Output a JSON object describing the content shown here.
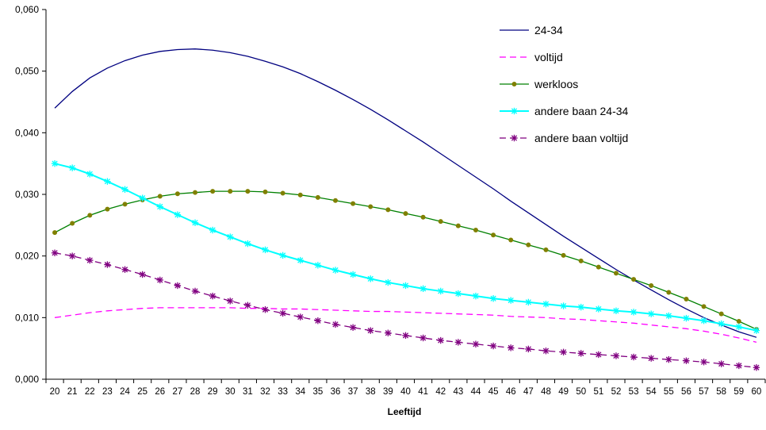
{
  "chart_data": {
    "type": "line",
    "title": "",
    "xlabel": "Leeftijd",
    "ylabel": "",
    "x": [
      20,
      21,
      22,
      23,
      24,
      25,
      26,
      27,
      28,
      29,
      30,
      31,
      32,
      33,
      34,
      35,
      36,
      37,
      38,
      39,
      40,
      41,
      42,
      43,
      44,
      45,
      46,
      47,
      48,
      49,
      50,
      51,
      52,
      53,
      54,
      55,
      56,
      57,
      58,
      59,
      60
    ],
    "ylim": [
      0,
      0.06
    ],
    "yticks": [
      "0,000",
      "0,010",
      "0,020",
      "0,030",
      "0,040",
      "0,050",
      "0,060"
    ],
    "ytick_values": [
      0,
      0.01,
      0.02,
      0.03,
      0.04,
      0.05,
      0.06
    ],
    "grid": false,
    "legend_position": "top-right",
    "series": [
      {
        "name": "24-34",
        "color": "#000080",
        "dash": "solid",
        "marker": "none",
        "values": [
          0.044,
          0.0467,
          0.0489,
          0.0505,
          0.0517,
          0.0526,
          0.0532,
          0.0535,
          0.0536,
          0.0534,
          0.053,
          0.0524,
          0.0516,
          0.0507,
          0.0496,
          0.0483,
          0.0469,
          0.0454,
          0.0438,
          0.0421,
          0.0403,
          0.0385,
          0.0366,
          0.0347,
          0.0328,
          0.0309,
          0.0289,
          0.027,
          0.0251,
          0.0232,
          0.0214,
          0.0196,
          0.0178,
          0.0161,
          0.0145,
          0.0129,
          0.0114,
          0.01,
          0.0088,
          0.0077,
          0.0068
        ]
      },
      {
        "name": "voltijd",
        "color": "#ff00ff",
        "dash": "dashed",
        "marker": "none",
        "values": [
          0.01,
          0.0104,
          0.0108,
          0.0111,
          0.0113,
          0.0115,
          0.0116,
          0.0116,
          0.0116,
          0.0116,
          0.0116,
          0.0115,
          0.0115,
          0.0114,
          0.0114,
          0.0113,
          0.0112,
          0.0111,
          0.011,
          0.011,
          0.0109,
          0.0108,
          0.0107,
          0.0106,
          0.0105,
          0.0104,
          0.0102,
          0.0101,
          0.01,
          0.0098,
          0.0097,
          0.0095,
          0.0093,
          0.0091,
          0.0088,
          0.0085,
          0.0082,
          0.0078,
          0.0073,
          0.0067,
          0.006
        ]
      },
      {
        "name": "werkloos",
        "color": "#008000",
        "markerColor": "#808000",
        "dash": "solid",
        "marker": "dot",
        "values": [
          0.0238,
          0.0253,
          0.0266,
          0.0276,
          0.0284,
          0.0291,
          0.0297,
          0.0301,
          0.0303,
          0.0305,
          0.0305,
          0.0305,
          0.0304,
          0.0302,
          0.0299,
          0.0295,
          0.029,
          0.0285,
          0.028,
          0.0275,
          0.0269,
          0.0263,
          0.0256,
          0.0249,
          0.0242,
          0.0234,
          0.0226,
          0.0218,
          0.021,
          0.0201,
          0.0192,
          0.0182,
          0.0172,
          0.0162,
          0.0152,
          0.0141,
          0.013,
          0.0118,
          0.0106,
          0.0094,
          0.0081
        ]
      },
      {
        "name": "andere baan 24-34",
        "color": "#00ffff",
        "dash": "solid",
        "marker": "star",
        "values": [
          0.035,
          0.0343,
          0.0333,
          0.0321,
          0.0308,
          0.0294,
          0.028,
          0.0267,
          0.0254,
          0.0242,
          0.0231,
          0.022,
          0.021,
          0.0201,
          0.0193,
          0.0185,
          0.0177,
          0.017,
          0.0163,
          0.0157,
          0.0152,
          0.0147,
          0.0143,
          0.0139,
          0.0135,
          0.0131,
          0.0128,
          0.0125,
          0.0122,
          0.0119,
          0.0117,
          0.0114,
          0.0111,
          0.0109,
          0.0106,
          0.0103,
          0.0099,
          0.0095,
          0.009,
          0.0085,
          0.0079
        ]
      },
      {
        "name": "andere baan voltijd",
        "color": "#800080",
        "dash": "dashed",
        "marker": "star",
        "values": [
          0.0205,
          0.02,
          0.0193,
          0.0186,
          0.0178,
          0.017,
          0.0161,
          0.0152,
          0.0143,
          0.0135,
          0.0127,
          0.012,
          0.0113,
          0.0107,
          0.0101,
          0.0095,
          0.0089,
          0.0084,
          0.0079,
          0.0075,
          0.0071,
          0.0067,
          0.0063,
          0.006,
          0.0057,
          0.0054,
          0.0051,
          0.0049,
          0.0046,
          0.0044,
          0.0042,
          0.004,
          0.0038,
          0.0036,
          0.0034,
          0.0032,
          0.003,
          0.0028,
          0.0025,
          0.0022,
          0.0019
        ]
      }
    ]
  }
}
